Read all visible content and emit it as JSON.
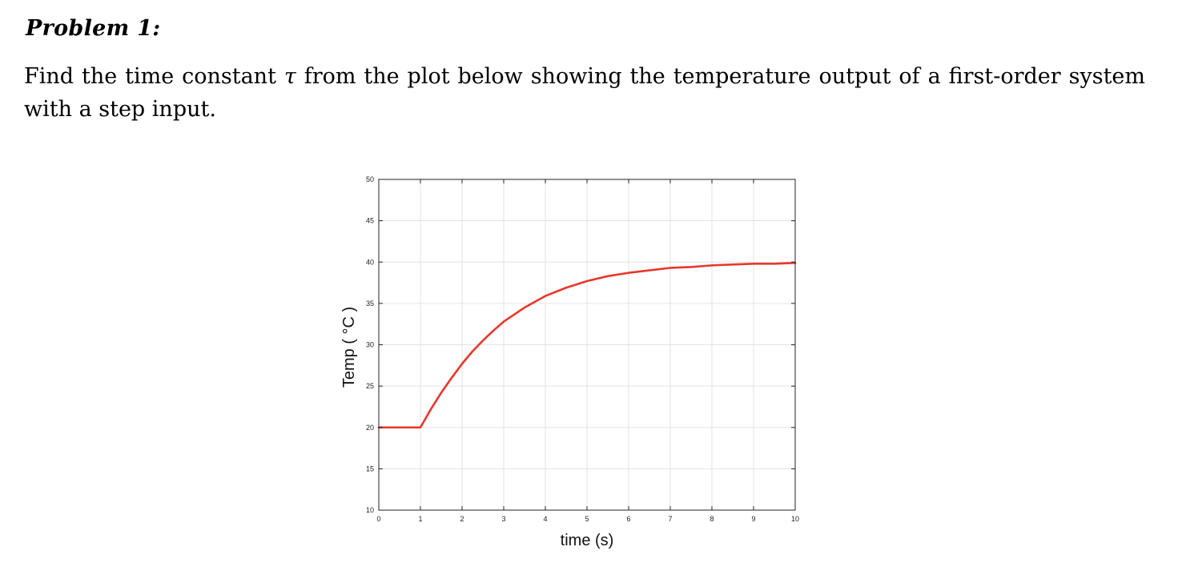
{
  "problem": {
    "heading": "Problem 1:",
    "text_before_symbol": "Find the time constant ",
    "symbol": "τ",
    "text_after_symbol": " from the plot below showing the temperature output of a first-order system with a step input."
  },
  "colors": {
    "curve": "#e8372b",
    "grid": "#e3e3e3",
    "axes": "#222222"
  },
  "chart_data": {
    "type": "line",
    "title": "",
    "xlabel": "time (s)",
    "ylabel": "Temp ( °C )",
    "xlim": [
      0,
      10
    ],
    "ylim": [
      10,
      50
    ],
    "xticks": [
      0,
      1,
      2,
      3,
      4,
      5,
      6,
      7,
      8,
      9,
      10
    ],
    "yticks": [
      10,
      15,
      20,
      25,
      30,
      35,
      40,
      45,
      50
    ],
    "grid": true,
    "box": true,
    "series": [
      {
        "x": [
          0,
          0.5,
          1,
          1.25,
          1.5,
          1.75,
          2,
          2.25,
          2.5,
          2.75,
          3,
          3.5,
          4,
          4.5,
          5,
          5.5,
          6,
          6.5,
          7,
          7.5,
          8,
          8.5,
          9,
          9.5,
          10
        ],
        "y": [
          20,
          20,
          20,
          22.2,
          24.2,
          26,
          27.7,
          29.2,
          30.5,
          31.7,
          32.8,
          34.5,
          35.9,
          36.9,
          37.7,
          38.3,
          38.7,
          39.0,
          39.3,
          39.4,
          39.6,
          39.7,
          39.8,
          39.8,
          39.9
        ]
      }
    ]
  }
}
